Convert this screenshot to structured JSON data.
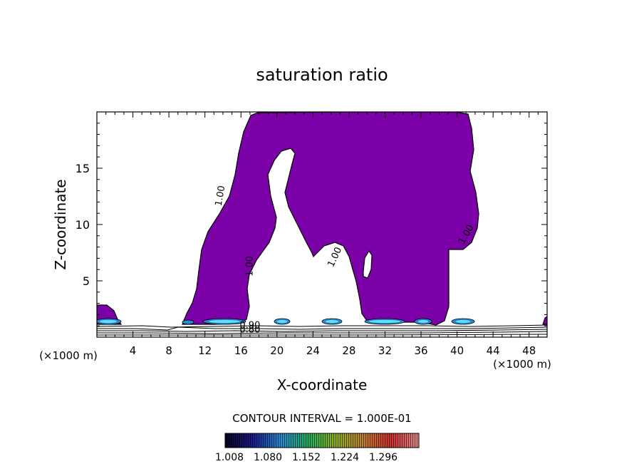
{
  "chart_data": {
    "type": "contour",
    "title": "saturation ratio",
    "xlabel": "X-coordinate",
    "ylabel": "Z-coordinate",
    "x_unit": "(×1000 m)",
    "z_unit": "(×1000 m)",
    "xlim": [
      0,
      50
    ],
    "ylim": [
      0,
      20
    ],
    "x_ticks": [
      4,
      8,
      12,
      16,
      20,
      24,
      28,
      32,
      36,
      40,
      44,
      48
    ],
    "y_ticks": [
      5,
      10,
      15
    ],
    "fill_color": "#7b00a8",
    "contour_interval_text": "CONTOUR INTERVAL = 1.000E-01",
    "contour_labels": [
      {
        "text": "1.00",
        "x": 14.0,
        "z": 12.5,
        "rotate": -80
      },
      {
        "text": "1.00",
        "x": 17.3,
        "z": 6.3,
        "rotate": -90
      },
      {
        "text": "1.00",
        "x": 26.7,
        "z": 7.0,
        "rotate": -65
      },
      {
        "text": "1.00",
        "x": 41.3,
        "z": 9.0,
        "rotate": -60
      },
      {
        "text": "0.90",
        "x": 17.0,
        "z": 0.8,
        "rotate": 0
      },
      {
        "text": "0.80",
        "x": 17.0,
        "z": 0.4,
        "rotate": 0
      }
    ],
    "colorbar": {
      "tick_labels": [
        "1.008",
        "1.080",
        "1.152",
        "1.224",
        "1.296"
      ],
      "colors": [
        "#050520",
        "#1a1a8c",
        "#2a8ad0",
        "#20b060",
        "#90b020",
        "#c08030",
        "#d03030",
        "#e09090"
      ]
    }
  }
}
